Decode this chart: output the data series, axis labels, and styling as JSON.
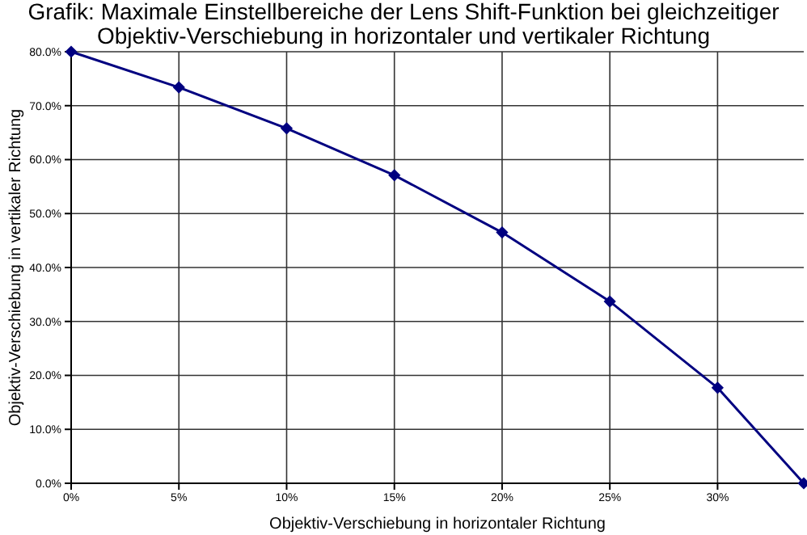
{
  "chart_data": {
    "type": "line",
    "title": "Grafik: Maximale Einstellbereiche der Lens Shift-Funktion bei gleichzeitiger Objektiv-Verschiebung in horizontaler und vertikaler Richtung",
    "xlabel": "Objektiv-Verschiebung in horizontaler Richtung",
    "ylabel": "Objektiv-Verschiebung in vertikaler Richtung",
    "x": [
      0,
      5,
      10,
      15,
      20,
      25,
      30,
      34
    ],
    "series": [
      {
        "color": "#000080",
        "values": [
          80,
          73.4,
          65.8,
          57.1,
          46.5,
          33.7,
          17.7,
          0
        ]
      }
    ],
    "xlim": [
      0,
      34
    ],
    "xticks": [
      {
        "value": 0,
        "label": "0%"
      },
      {
        "value": 5,
        "label": "5%"
      },
      {
        "value": 10,
        "label": "10%"
      },
      {
        "value": 15,
        "label": "15%"
      },
      {
        "value": 20,
        "label": "20%"
      },
      {
        "value": 25,
        "label": "25%"
      },
      {
        "value": 30,
        "label": "30%"
      }
    ],
    "ylim": [
      0,
      80
    ],
    "yticks": [
      {
        "value": 0,
        "label": "0.0%"
      },
      {
        "value": 10,
        "label": "10.0%"
      },
      {
        "value": 20,
        "label": "20.0%"
      },
      {
        "value": 30,
        "label": "30.0%"
      },
      {
        "value": 40,
        "label": "40.0%"
      },
      {
        "value": 50,
        "label": "50.0%"
      },
      {
        "value": 60,
        "label": "60.0%"
      },
      {
        "value": 70,
        "label": "70.0%"
      },
      {
        "value": 80,
        "label": "80.0%"
      }
    ],
    "grid": true,
    "marker": "diamond",
    "line_style": "solid",
    "legend": false
  }
}
